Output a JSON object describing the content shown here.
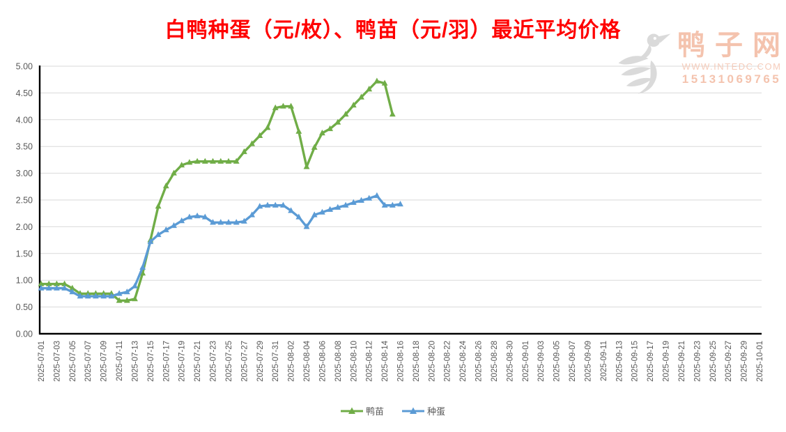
{
  "title": "白鸭种蛋（元/枚）、鸭苗（元/羽）最近平均价格",
  "watermark": {
    "site_name": "鸭子网",
    "url": "WWW.INTEDC.COM",
    "phone": "15131069765"
  },
  "legend": {
    "items": [
      {
        "label": "鸭苗",
        "color": "#70AD47"
      },
      {
        "label": "种蛋",
        "color": "#5B9BD5"
      }
    ]
  },
  "colors": {
    "title": "#FF0000",
    "axis_line": "#000000",
    "gridline": "#D9D9D9",
    "axis_text": "#595959",
    "legend_text": "#595959",
    "watermark_text": "#F4C3AE",
    "watermark_logo": "#DADADA"
  },
  "chart_data": {
    "type": "line",
    "title": "白鸭种蛋（元/枚）、鸭苗（元/羽）最近平均价格",
    "xlabel": "",
    "ylabel": "",
    "ylim": [
      0,
      5
    ],
    "grid": true,
    "legend_position": "bottom",
    "y_ticks": [
      "0.00",
      "0.50",
      "1.00",
      "1.50",
      "2.00",
      "2.50",
      "3.00",
      "3.50",
      "4.00",
      "4.50",
      "5.00"
    ],
    "x_axis_start": "2025-07-01",
    "x_axis_end": "2025-10-01",
    "x_tick_labels": [
      "2025-07-01",
      "2025-07-03",
      "2025-07-05",
      "2025-07-07",
      "2025-07-09",
      "2025-07-11",
      "2025-07-13",
      "2025-07-15",
      "2025-07-17",
      "2025-07-19",
      "2025-07-21",
      "2025-07-23",
      "2025-07-25",
      "2025-07-27",
      "2025-07-29",
      "2025-07-31",
      "2025-08-02",
      "2025-08-04",
      "2025-08-06",
      "2025-08-08",
      "2025-08-10",
      "2025-08-12",
      "2025-08-14",
      "2025-08-16",
      "2025-08-18",
      "2025-08-20",
      "2025-08-22",
      "2025-08-24",
      "2025-08-26",
      "2025-08-28",
      "2025-08-30",
      "2025-09-01",
      "2025-09-03",
      "2025-09-05",
      "2025-09-07",
      "2025-09-09",
      "2025-09-11",
      "2025-09-13",
      "2025-09-15",
      "2025-09-17",
      "2025-09-19",
      "2025-09-21",
      "2025-09-23",
      "2025-09-25",
      "2025-09-27",
      "2025-09-29",
      "2025-10-01"
    ],
    "dates": [
      "2025-07-01",
      "2025-07-02",
      "2025-07-03",
      "2025-07-04",
      "2025-07-05",
      "2025-07-06",
      "2025-07-07",
      "2025-07-08",
      "2025-07-09",
      "2025-07-10",
      "2025-07-11",
      "2025-07-12",
      "2025-07-13",
      "2025-07-14",
      "2025-07-15",
      "2025-07-16",
      "2025-07-17",
      "2025-07-18",
      "2025-07-19",
      "2025-07-20",
      "2025-07-21",
      "2025-07-22",
      "2025-07-23",
      "2025-07-24",
      "2025-07-25",
      "2025-07-26",
      "2025-07-27",
      "2025-07-28",
      "2025-07-29",
      "2025-07-30",
      "2025-07-31",
      "2025-08-01",
      "2025-08-02",
      "2025-08-03",
      "2025-08-04",
      "2025-08-05",
      "2025-08-06",
      "2025-08-07",
      "2025-08-08",
      "2025-08-09",
      "2025-08-10",
      "2025-08-11",
      "2025-08-12",
      "2025-08-13",
      "2025-08-14",
      "2025-08-15",
      "2025-08-16"
    ],
    "series": [
      {
        "name": "鸭苗",
        "id": "duckling",
        "color": "#70AD47",
        "unit": "元/羽",
        "values": [
          0.93,
          0.93,
          0.93,
          0.93,
          0.85,
          0.75,
          0.75,
          0.75,
          0.75,
          0.75,
          0.62,
          0.62,
          0.65,
          1.13,
          1.75,
          2.38,
          2.76,
          3.0,
          3.15,
          3.2,
          3.22,
          3.22,
          3.22,
          3.22,
          3.22,
          3.22,
          3.4,
          3.55,
          3.7,
          3.85,
          4.22,
          4.25,
          4.25,
          3.78,
          3.12,
          3.48,
          3.75,
          3.83,
          3.95,
          4.1,
          4.27,
          4.42,
          4.57,
          4.72,
          4.68,
          4.1,
          null
        ]
      },
      {
        "name": "种蛋",
        "id": "breeding-egg",
        "color": "#5B9BD5",
        "unit": "元/枚",
        "values": [
          0.85,
          0.85,
          0.85,
          0.85,
          0.78,
          0.7,
          0.7,
          0.7,
          0.7,
          0.7,
          0.75,
          0.78,
          0.89,
          1.24,
          1.72,
          1.85,
          1.94,
          2.02,
          2.11,
          2.18,
          2.2,
          2.18,
          2.08,
          2.08,
          2.08,
          2.08,
          2.1,
          2.22,
          2.38,
          2.4,
          2.4,
          2.4,
          2.3,
          2.18,
          2.0,
          2.22,
          2.27,
          2.32,
          2.36,
          2.4,
          2.45,
          2.49,
          2.53,
          2.58,
          2.4,
          2.4,
          2.42
        ]
      }
    ]
  }
}
